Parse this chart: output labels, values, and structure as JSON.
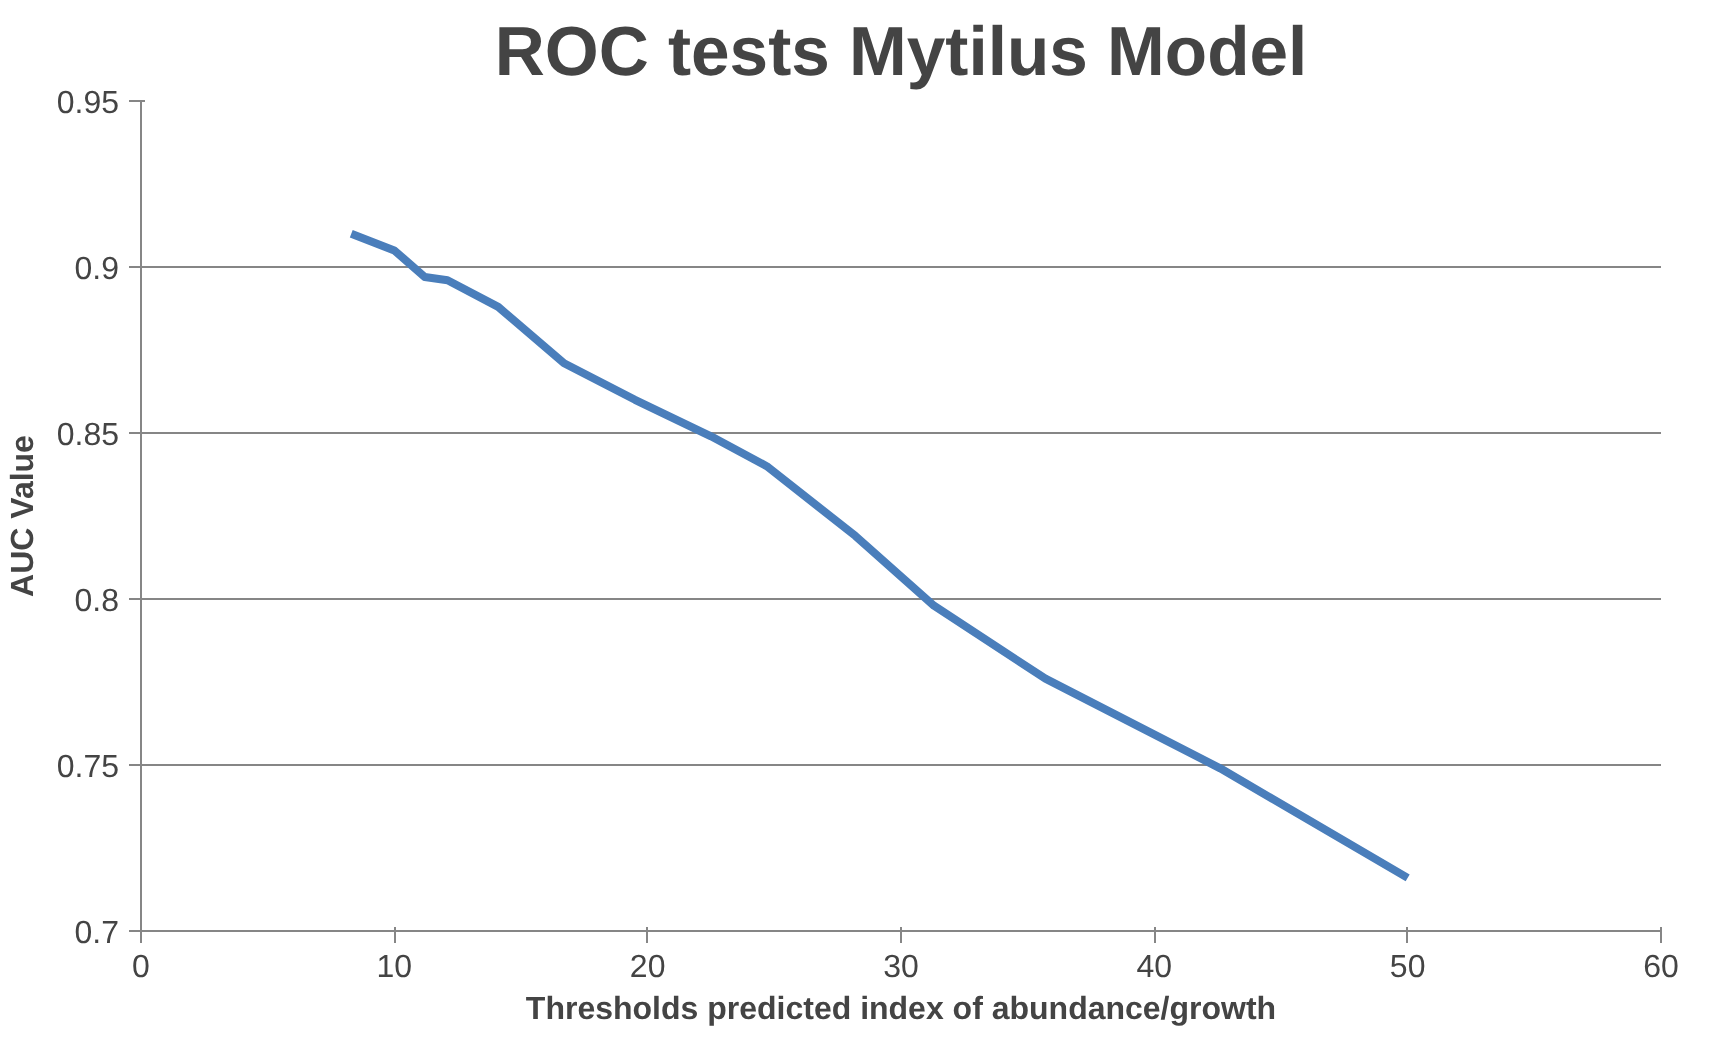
{
  "chart_data": {
    "type": "line",
    "title": "ROC tests Mytilus Model",
    "xlabel": "Thresholds predicted index of abundance/growth",
    "ylabel": "AUC Value",
    "x": [
      8.3,
      10.0,
      11.2,
      12.1,
      14.1,
      16.7,
      19.5,
      22.5,
      24.7,
      28.2,
      31.3,
      35.7,
      42.6,
      50.0
    ],
    "series": [
      {
        "color": "#4a7ebb",
        "values": [
          0.91,
          0.905,
          0.897,
          0.896,
          0.888,
          0.871,
          0.86,
          0.849,
          0.84,
          0.819,
          0.798,
          0.776,
          0.749,
          0.716
        ]
      }
    ],
    "xlim": [
      0,
      60
    ],
    "ylim": [
      0.7,
      0.95
    ],
    "xticks": [
      0,
      10,
      20,
      30,
      40,
      50,
      60
    ],
    "yticks": [
      0.7,
      0.75,
      0.8,
      0.85,
      0.9,
      0.95
    ],
    "grid": "y",
    "marker": "none",
    "line_style": "solid"
  }
}
